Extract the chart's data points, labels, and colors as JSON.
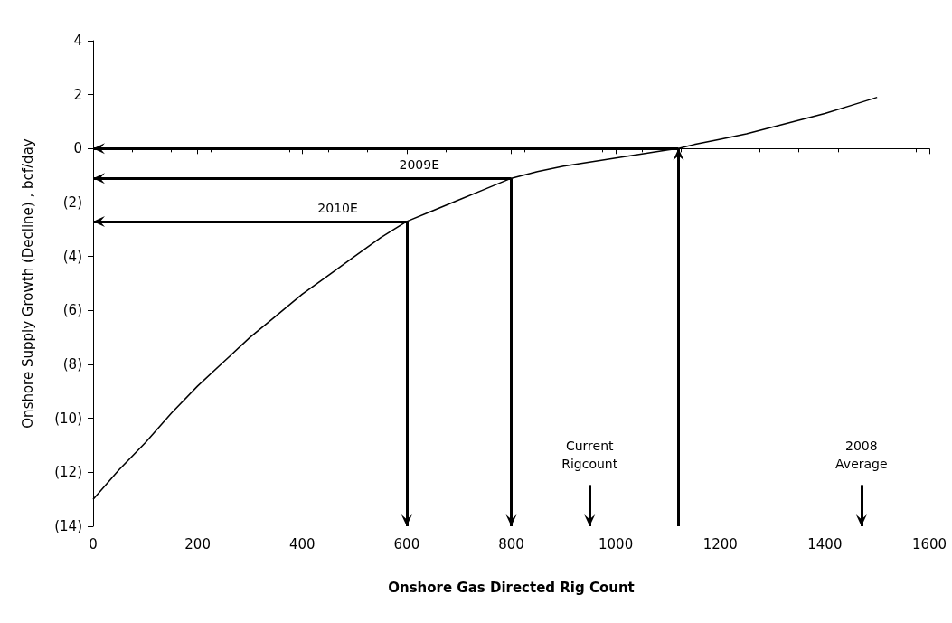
{
  "chart_data": {
    "type": "line",
    "xlabel": "Onshore Gas Directed Rig Count",
    "ylabel": "Onshore Supply Growth (Decline) , bcf/day",
    "x": [
      0,
      50,
      100,
      150,
      200,
      250,
      300,
      350,
      400,
      450,
      500,
      550,
      600,
      650,
      700,
      750,
      800,
      850,
      900,
      950,
      1000,
      1050,
      1100,
      1120,
      1150,
      1200,
      1250,
      1300,
      1350,
      1400,
      1450,
      1500
    ],
    "series": [
      {
        "color": "#000000",
        "values": [
          -13.0,
          -11.9,
          -10.9,
          -9.8,
          -8.8,
          -7.9,
          -7.0,
          -6.2,
          -5.4,
          -4.7,
          -4.0,
          -3.3,
          -2.7,
          -2.3,
          -1.9,
          -1.5,
          -1.1,
          -0.85,
          -0.65,
          -0.5,
          -0.35,
          -0.2,
          -0.05,
          0.0,
          0.15,
          0.35,
          0.55,
          0.8,
          1.05,
          1.3,
          1.6,
          1.9
        ]
      }
    ],
    "xlim": [
      0,
      1600
    ],
    "xticks": [
      0,
      200,
      400,
      600,
      800,
      1000,
      1200,
      1400,
      1600
    ],
    "ylim": [
      -14,
      4
    ],
    "yticks": [
      {
        "value": -14,
        "label": "(14)"
      },
      {
        "value": -12,
        "label": "(12)"
      },
      {
        "value": -10,
        "label": "(10)"
      },
      {
        "value": -8,
        "label": "(8)"
      },
      {
        "value": -6,
        "label": "(6)"
      },
      {
        "value": -4,
        "label": "(4)"
      },
      {
        "value": -2,
        "label": "(2)"
      },
      0,
      2,
      4
    ],
    "marker": "none",
    "line_style": "solid",
    "ref_lines": [
      {
        "axis": "x",
        "value": 1120,
        "label": null,
        "color": "#000000"
      },
      {
        "axis": "y",
        "value": 0,
        "label": null,
        "color": "#000000"
      },
      {
        "axis": "y",
        "value": -1.1,
        "label": "2009E",
        "color": "#000000"
      },
      {
        "axis": "x",
        "value": 800,
        "label": null,
        "color": "#000000"
      },
      {
        "axis": "y",
        "value": -2.7,
        "label": "2010E",
        "color": "#000000"
      },
      {
        "axis": "x",
        "value": 600,
        "label": null,
        "color": "#000000"
      },
      {
        "axis": "x",
        "value": 950,
        "label": "Current\nRigcount",
        "color": "#000000"
      },
      {
        "axis": "x",
        "value": 1470,
        "label": "2008\nAverage",
        "color": "#000000"
      }
    ]
  }
}
